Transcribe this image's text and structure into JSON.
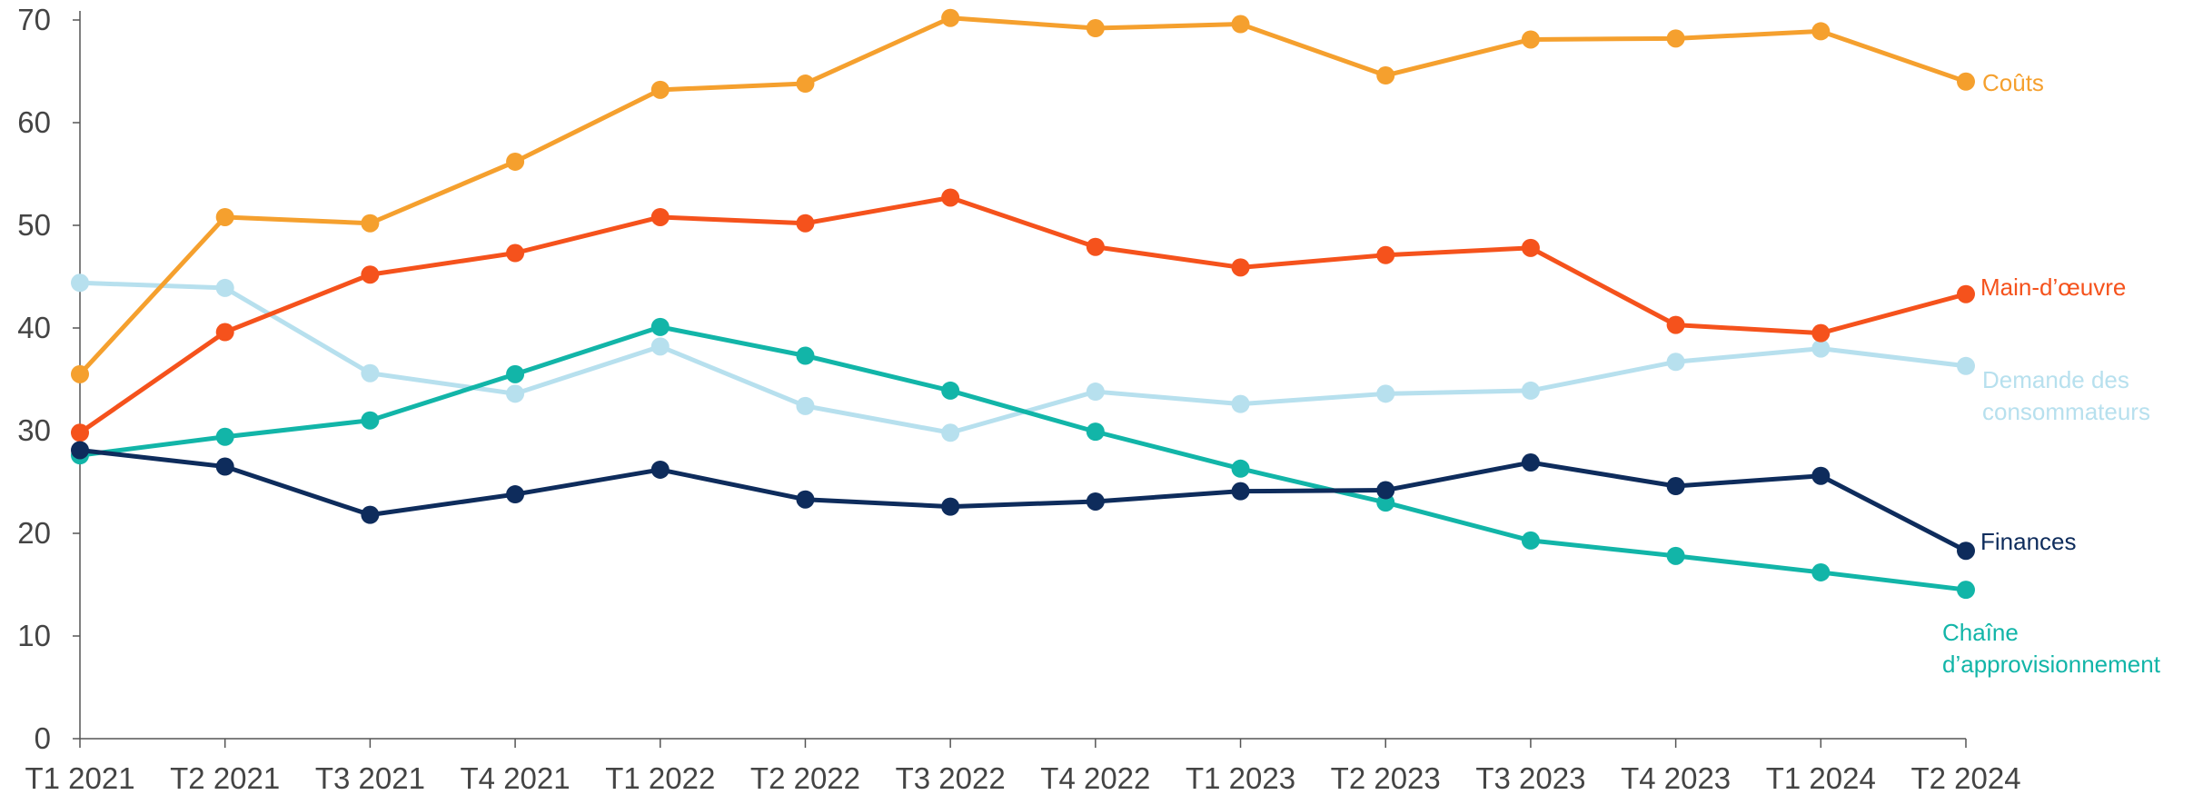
{
  "chart_data": {
    "type": "line",
    "x": [
      "T1 2021",
      "T2 2021",
      "T3 2021",
      "T4 2021",
      "T1 2022",
      "T2 2022",
      "T3 2022",
      "T4 2022",
      "T1 2023",
      "T2 2023",
      "T3 2023",
      "T4 2023",
      "T1 2024",
      "T2 2024"
    ],
    "ylim": [
      0,
      70
    ],
    "yticks": [
      "0",
      "10",
      "20",
      "30",
      "40",
      "50",
      "60",
      "70"
    ],
    "grid": false,
    "legend": "inline-right",
    "series": [
      {
        "name": "Coûts",
        "label_lines": [
          "Coûts"
        ],
        "color": "#F5A02E",
        "values": [
          35.5,
          50.8,
          50.2,
          56.2,
          63.2,
          63.8,
          70.2,
          69.2,
          69.6,
          64.6,
          68.1,
          68.2,
          68.9,
          64.0
        ]
      },
      {
        "name": "Main-d’œuvre",
        "label_lines": [
          "Main-d’œuvre"
        ],
        "color": "#F5521C",
        "values": [
          29.8,
          39.6,
          45.2,
          47.3,
          50.8,
          50.2,
          52.7,
          47.9,
          45.9,
          47.1,
          47.8,
          40.3,
          39.5,
          43.3
        ]
      },
      {
        "name": "Demande des consommateurs",
        "label_lines": [
          "Demande des",
          "consommateurs"
        ],
        "color": "#B7E0EE",
        "values": [
          44.4,
          43.9,
          35.6,
          33.6,
          38.2,
          32.4,
          29.8,
          33.8,
          32.6,
          33.6,
          33.9,
          36.7,
          38.0,
          36.3
        ]
      },
      {
        "name": "Chaîne d’approvisionnement",
        "label_lines": [
          "Chaîne",
          "d’approvisionnement"
        ],
        "color": "#12B5A8",
        "values": [
          27.6,
          29.4,
          31.0,
          35.5,
          40.1,
          37.3,
          33.9,
          29.9,
          26.3,
          23.0,
          19.3,
          17.8,
          16.2,
          14.5
        ]
      },
      {
        "name": "Finances",
        "label_lines": [
          "Finances"
        ],
        "color": "#0E2C5C",
        "values": [
          28.1,
          26.5,
          21.8,
          23.8,
          26.2,
          23.3,
          22.6,
          23.1,
          24.1,
          24.2,
          26.9,
          24.6,
          25.6,
          18.3
        ]
      }
    ]
  }
}
